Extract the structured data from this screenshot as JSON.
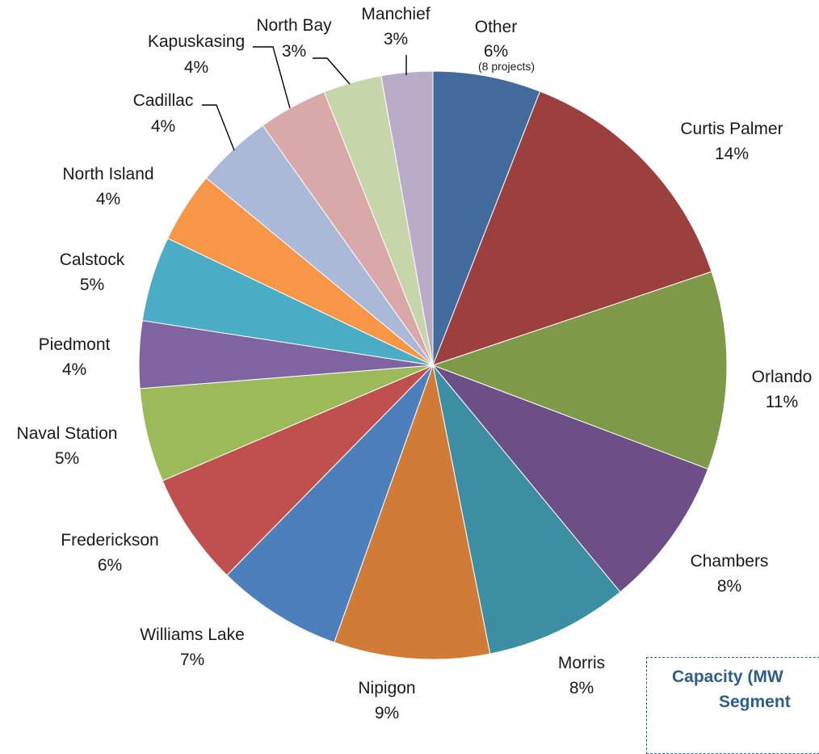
{
  "chart_data": {
    "type": "pie",
    "start_angle_deg": 0,
    "direction": "clockwise",
    "slices": [
      {
        "label": "Other",
        "pct_label": "6%",
        "value": 6.1,
        "note": "(8 projects)",
        "color": "#426b9c"
      },
      {
        "label": "Curtis Palmer",
        "pct_label": "14%",
        "value": 14.3,
        "color": "#9b403e"
      },
      {
        "label": "Orlando",
        "pct_label": "11%",
        "value": 11.2,
        "color": "#7e9a48"
      },
      {
        "label": "Chambers",
        "pct_label": "8%",
        "value": 8.5,
        "color": "#6b4f86"
      },
      {
        "label": "Morris",
        "pct_label": "8%",
        "value": 8.1,
        "color": "#3c8fa3"
      },
      {
        "label": "Nipigon",
        "pct_label": "9%",
        "value": 8.8,
        "color": "#d07c38"
      },
      {
        "label": "Williams Lake",
        "pct_label": "7%",
        "value": 7.1,
        "color": "#4e7fbd"
      },
      {
        "label": "Frederickson",
        "pct_label": "6%",
        "value": 6.4,
        "color": "#c0504d"
      },
      {
        "label": "Naval Station",
        "pct_label": "5%",
        "value": 5.3,
        "color": "#9bbb59"
      },
      {
        "label": "Piedmont",
        "pct_label": "4%",
        "value": 3.8,
        "color": "#8064a2"
      },
      {
        "label": "Calstock",
        "pct_label": "5%",
        "value": 4.8,
        "color": "#4bacc6"
      },
      {
        "label": "North Island",
        "pct_label": "4%",
        "value": 4.0,
        "color": "#f79646"
      },
      {
        "label": "Cadillac",
        "pct_label": "4%",
        "value": 4.3,
        "color": "#aab9d8"
      },
      {
        "label": "Kapuskasing",
        "pct_label": "4%",
        "value": 3.9,
        "color": "#d9a8a8"
      },
      {
        "label": "North Bay",
        "pct_label": "3%",
        "value": 3.3,
        "color": "#c6d6aa"
      },
      {
        "label": "Manchief",
        "pct_label": "3%",
        "value": 2.9,
        "color": "#b9acc9"
      }
    ],
    "legend": "none"
  },
  "callout": {
    "line1": "Capacity (MW",
    "line2": "Segment"
  }
}
